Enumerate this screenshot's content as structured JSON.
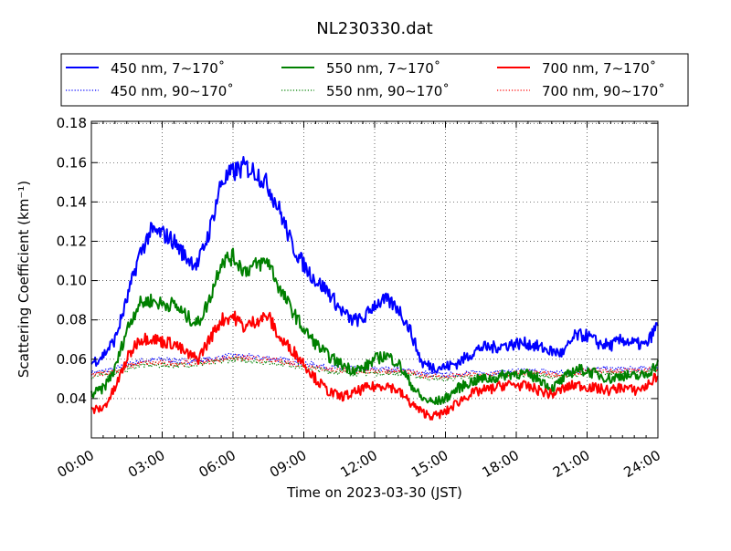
{
  "chart_data": {
    "type": "line",
    "title": "NL230330.dat",
    "xlabel": "Time on 2023-03-30 (JST)",
    "ylabel": "Scattering Coefficient (km⁻¹)",
    "xlim": [
      0,
      24
    ],
    "ylim": [
      0.02,
      0.181
    ],
    "grid": true,
    "legend_placement": "top, above plot, 3 columns",
    "x_ticks": [
      0,
      3,
      6,
      9,
      12,
      15,
      18,
      21,
      24
    ],
    "x_tick_labels": [
      "00:00",
      "03:00",
      "06:00",
      "09:00",
      "12:00",
      "15:00",
      "18:00",
      "21:00",
      "24:00"
    ],
    "y_ticks": [
      0.04,
      0.06,
      0.08,
      0.1,
      0.12,
      0.14,
      0.16,
      0.18
    ],
    "y_tick_labels": [
      "0.04",
      "0.06",
      "0.08",
      "0.10",
      "0.12",
      "0.14",
      "0.16",
      "0.18"
    ],
    "x_unit": "hours",
    "series": [
      {
        "name": "450 nm, 7∼170˚",
        "color": "#0000ff",
        "style": "solid",
        "step": 0.5,
        "values": [
          0.058,
          0.062,
          0.07,
          0.09,
          0.112,
          0.125,
          0.124,
          0.12,
          0.112,
          0.108,
          0.125,
          0.15,
          0.155,
          0.158,
          0.155,
          0.148,
          0.135,
          0.118,
          0.108,
          0.1,
          0.095,
          0.086,
          0.08,
          0.08,
          0.088,
          0.09,
          0.086,
          0.075,
          0.058,
          0.056,
          0.056,
          0.058,
          0.062,
          0.066,
          0.066,
          0.067,
          0.068,
          0.068,
          0.066,
          0.064,
          0.063,
          0.072,
          0.072,
          0.068,
          0.067,
          0.07,
          0.068,
          0.067,
          0.078
        ]
      },
      {
        "name": "550 nm, 7∼170˚",
        "color": "#008000",
        "style": "solid",
        "step": 0.5,
        "values": [
          0.042,
          0.045,
          0.055,
          0.075,
          0.088,
          0.09,
          0.088,
          0.088,
          0.082,
          0.078,
          0.09,
          0.11,
          0.112,
          0.105,
          0.108,
          0.11,
          0.095,
          0.085,
          0.075,
          0.068,
          0.062,
          0.058,
          0.055,
          0.055,
          0.06,
          0.062,
          0.058,
          0.048,
          0.04,
          0.038,
          0.04,
          0.045,
          0.048,
          0.05,
          0.05,
          0.052,
          0.053,
          0.052,
          0.05,
          0.045,
          0.05,
          0.055,
          0.054,
          0.052,
          0.05,
          0.052,
          0.051,
          0.052,
          0.058
        ]
      },
      {
        "name": "700 nm, 7∼170˚",
        "color": "#ff0000",
        "style": "solid",
        "step": 0.5,
        "values": [
          0.034,
          0.035,
          0.045,
          0.06,
          0.07,
          0.071,
          0.069,
          0.068,
          0.063,
          0.06,
          0.07,
          0.08,
          0.082,
          0.076,
          0.08,
          0.082,
          0.07,
          0.065,
          0.058,
          0.05,
          0.044,
          0.041,
          0.042,
          0.045,
          0.046,
          0.047,
          0.044,
          0.038,
          0.033,
          0.031,
          0.033,
          0.038,
          0.042,
          0.044,
          0.045,
          0.047,
          0.047,
          0.046,
          0.044,
          0.042,
          0.045,
          0.047,
          0.046,
          0.045,
          0.044,
          0.046,
          0.044,
          0.046,
          0.052
        ]
      },
      {
        "name": "450 nm, 90∼170˚",
        "color": "#0000ff",
        "style": "dotted",
        "step": 1,
        "values": [
          0.053,
          0.055,
          0.059,
          0.06,
          0.059,
          0.06,
          0.062,
          0.061,
          0.06,
          0.058,
          0.056,
          0.055,
          0.055,
          0.055,
          0.053,
          0.052,
          0.053,
          0.053,
          0.054,
          0.054,
          0.053,
          0.055,
          0.055,
          0.055,
          0.056
        ]
      },
      {
        "name": "550 nm, 90∼170˚",
        "color": "#008000",
        "style": "dotted",
        "step": 1,
        "values": [
          0.051,
          0.053,
          0.057,
          0.057,
          0.057,
          0.058,
          0.06,
          0.059,
          0.058,
          0.056,
          0.054,
          0.053,
          0.053,
          0.053,
          0.051,
          0.05,
          0.051,
          0.051,
          0.052,
          0.052,
          0.051,
          0.053,
          0.053,
          0.053,
          0.054
        ]
      },
      {
        "name": "700 nm, 90∼170˚",
        "color": "#ff0000",
        "style": "dotted",
        "step": 1,
        "values": [
          0.052,
          0.054,
          0.058,
          0.058,
          0.058,
          0.059,
          0.061,
          0.06,
          0.059,
          0.057,
          0.055,
          0.054,
          0.054,
          0.054,
          0.052,
          0.051,
          0.052,
          0.052,
          0.053,
          0.053,
          0.052,
          0.054,
          0.054,
          0.054,
          0.055
        ]
      }
    ]
  }
}
